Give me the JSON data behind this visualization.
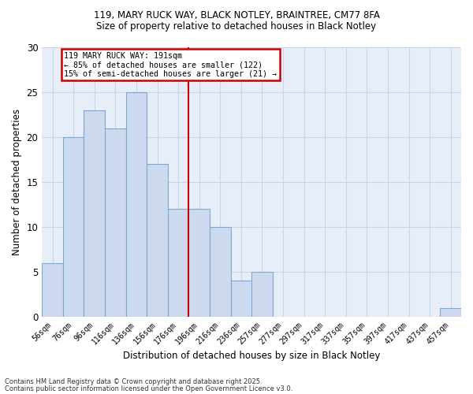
{
  "title1": "119, MARY RUCK WAY, BLACK NOTLEY, BRAINTREE, CM77 8FA",
  "title2": "Size of property relative to detached houses in Black Notley",
  "xlabel": "Distribution of detached houses by size in Black Notley",
  "ylabel": "Number of detached properties",
  "bar_color": "#ccd9ee",
  "bar_edge_color": "#7aaad0",
  "categories": [
    "56sqm",
    "76sqm",
    "96sqm",
    "116sqm",
    "136sqm",
    "156sqm",
    "176sqm",
    "196sqm",
    "216sqm",
    "236sqm",
    "257sqm",
    "277sqm",
    "297sqm",
    "317sqm",
    "337sqm",
    "357sqm",
    "397sqm",
    "417sqm",
    "437sqm",
    "457sqm"
  ],
  "values": [
    6,
    20,
    23,
    21,
    25,
    17,
    12,
    12,
    10,
    4,
    5,
    0,
    0,
    0,
    0,
    0,
    0,
    0,
    0,
    1
  ],
  "ylim": [
    0,
    30
  ],
  "yticks": [
    0,
    5,
    10,
    15,
    20,
    25,
    30
  ],
  "vline_color": "#cc0000",
  "annotation_title": "119 MARY RUCK WAY: 191sqm",
  "annotation_line1": "← 85% of detached houses are smaller (122)",
  "annotation_line2": "15% of semi-detached houses are larger (21) →",
  "annotation_box_color": "#cc0000",
  "footnote1": "Contains HM Land Registry data © Crown copyright and database right 2025.",
  "footnote2": "Contains public sector information licensed under the Open Government Licence v3.0.",
  "grid_color": "#c8d4e8",
  "background_color": "#e8eef8"
}
